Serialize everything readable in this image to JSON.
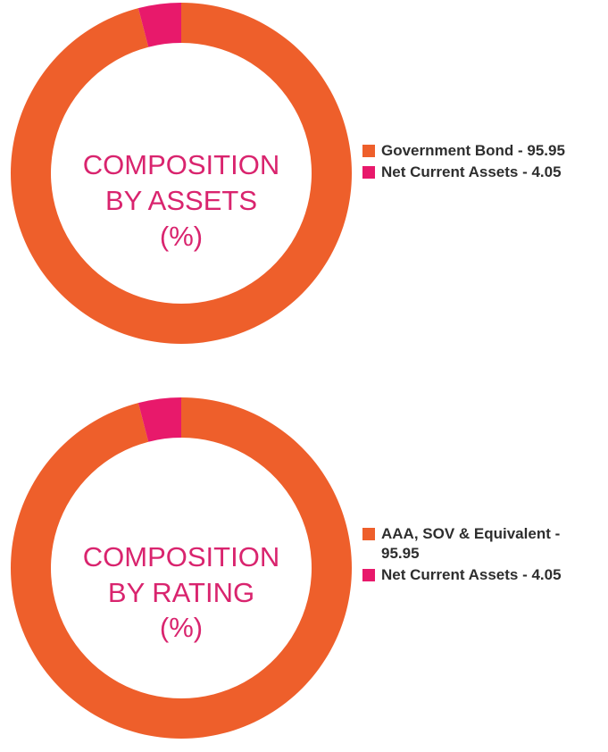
{
  "colors": {
    "primary_segment": "#ee5f2b",
    "secondary_segment": "#e8196b",
    "center_title": "#d9246e",
    "legend_text": "#2e2e2e"
  },
  "chart_data": [
    {
      "type": "pie",
      "style": "donut",
      "center_title_lines": [
        "COMPOSITION",
        "BY ASSETS",
        "(%)"
      ],
      "start_angle": "12 o'clock, clockwise",
      "legend_position": "right",
      "slices": [
        {
          "label": "Government Bond - 95.95",
          "value": 95.95,
          "color": "#ee5f2b"
        },
        {
          "label": "Net Current Assets - 4.05",
          "value": 4.05,
          "color": "#e8196b"
        }
      ]
    },
    {
      "type": "pie",
      "style": "donut",
      "center_title_lines": [
        "COMPOSITION",
        "BY RATING",
        "(%)"
      ],
      "start_angle": "12 o'clock, clockwise",
      "legend_position": "right",
      "slices": [
        {
          "label": "AAA, SOV & Equivalent - 95.95",
          "value": 95.95,
          "color": "#ee5f2b"
        },
        {
          "label": "Net Current Assets - 4.05",
          "value": 4.05,
          "color": "#e8196b"
        }
      ]
    }
  ]
}
